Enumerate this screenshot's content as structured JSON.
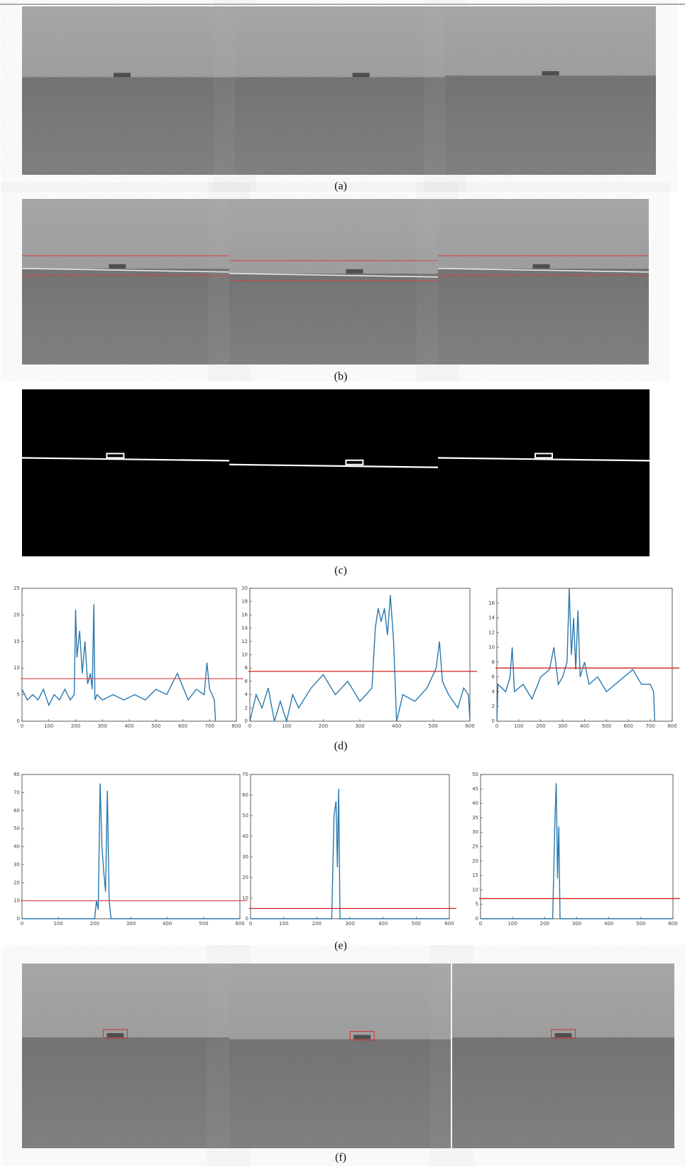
{
  "captions": [
    "(a)",
    "(b)",
    "(c)",
    "(d)",
    "(e)",
    "(f)"
  ],
  "chart_data": [
    {
      "type": "line",
      "color": "#2a78ad",
      "threshold": 8,
      "threshold_color": "#e05050",
      "xlim": [
        0,
        800
      ],
      "ylim": [
        0,
        25
      ],
      "xticks": [
        0,
        100,
        200,
        300,
        400,
        500,
        600,
        700,
        800
      ],
      "yticks": [
        0,
        5,
        10,
        15,
        20,
        25
      ],
      "x": [
        0,
        20,
        40,
        60,
        80,
        100,
        120,
        140,
        160,
        180,
        195,
        200,
        205,
        215,
        225,
        235,
        245,
        255,
        262,
        268,
        272,
        280,
        300,
        340,
        380,
        420,
        460,
        500,
        540,
        580,
        620,
        650,
        680,
        690,
        700,
        710,
        718,
        722
      ],
      "values": [
        6,
        4,
        5,
        4,
        6,
        3,
        5,
        4,
        6,
        4,
        5,
        21,
        12,
        17,
        9,
        15,
        7,
        9,
        6,
        22,
        4,
        5,
        4,
        5,
        4,
        5,
        4,
        6,
        5,
        9,
        4,
        6,
        5,
        11,
        6,
        5,
        4,
        0
      ]
    },
    {
      "type": "line",
      "color": "#2a78ad",
      "threshold": 7.5,
      "threshold_color": "#d02020",
      "xlim": [
        0,
        600
      ],
      "ylim": [
        0,
        20
      ],
      "xticks": [
        0,
        100,
        200,
        300,
        400,
        500,
        600
      ],
      "yticks": [
        0,
        2,
        4,
        6,
        8,
        10,
        12,
        14,
        16,
        18,
        20
      ],
      "x": [
        0,
        17,
        33,
        50,
        67,
        83,
        100,
        117,
        133,
        167,
        200,
        233,
        267,
        300,
        333,
        342,
        350,
        358,
        367,
        375,
        383,
        392,
        400,
        417,
        450,
        483,
        508,
        517,
        525,
        542,
        567,
        583,
        596,
        600
      ],
      "values": [
        0,
        4,
        2,
        5,
        0,
        3,
        0,
        4,
        2,
        5,
        7,
        4,
        6,
        3,
        5,
        14,
        17,
        15,
        17,
        13,
        19,
        12,
        0,
        4,
        3,
        5,
        8,
        12,
        6,
        4,
        2,
        5,
        4,
        0
      ]
    },
    {
      "type": "line",
      "color": "#2a78ad",
      "threshold": 7.2,
      "threshold_color": "#d02020",
      "xlim": [
        0,
        800
      ],
      "ylim": [
        0,
        18
      ],
      "xticks": [
        0,
        100,
        200,
        300,
        400,
        500,
        600,
        700,
        800
      ],
      "yticks": [
        0,
        2,
        4,
        6,
        8,
        10,
        12,
        14,
        16
      ],
      "x": [
        0,
        5,
        40,
        60,
        70,
        80,
        120,
        160,
        200,
        240,
        260,
        280,
        300,
        320,
        330,
        340,
        350,
        360,
        370,
        380,
        400,
        420,
        460,
        500,
        540,
        580,
        620,
        660,
        700,
        715,
        720
      ],
      "values": [
        0,
        5,
        4,
        6,
        10,
        4,
        5,
        3,
        6,
        7,
        10,
        5,
        6,
        8,
        18,
        9,
        14,
        7,
        15,
        6,
        8,
        5,
        6,
        4,
        5,
        6,
        7,
        5,
        5,
        4,
        0
      ]
    },
    {
      "type": "line",
      "color": "#2a78ad",
      "threshold": 10,
      "threshold_color": "#e05050",
      "xlim": [
        0,
        600
      ],
      "ylim": [
        0,
        80
      ],
      "xticks": [
        0,
        100,
        200,
        300,
        400,
        500,
        600
      ],
      "yticks": [
        0,
        10,
        20,
        30,
        40,
        50,
        60,
        70,
        80
      ],
      "x": [
        0,
        200,
        205,
        210,
        215,
        220,
        225,
        230,
        235,
        240,
        245,
        250,
        600
      ],
      "values": [
        0,
        0,
        10,
        5,
        75,
        40,
        26,
        15,
        71,
        10,
        0,
        0,
        0
      ]
    },
    {
      "type": "line",
      "color": "#2a78ad",
      "threshold": 5,
      "threshold_color": "#d02020",
      "xlim": [
        0,
        600
      ],
      "ylim": [
        0,
        70
      ],
      "xticks": [
        0,
        100,
        200,
        300,
        400,
        500,
        600
      ],
      "yticks": [
        0,
        10,
        20,
        30,
        40,
        50,
        60,
        70
      ],
      "x": [
        0,
        245,
        252,
        258,
        262,
        266,
        270,
        275,
        600
      ],
      "values": [
        0,
        0,
        50,
        57,
        25,
        63,
        0,
        0,
        0
      ]
    },
    {
      "type": "line",
      "color": "#2a78ad",
      "threshold": 7,
      "threshold_color": "#d02020",
      "xlim": [
        0,
        600
      ],
      "ylim": [
        0,
        50
      ],
      "xticks": [
        0,
        100,
        200,
        300,
        400,
        500,
        600
      ],
      "yticks": [
        0,
        5,
        10,
        15,
        20,
        25,
        30,
        35,
        40,
        45,
        50
      ],
      "x": [
        0,
        225,
        232,
        236,
        240,
        244,
        248,
        252,
        600
      ],
      "values": [
        0,
        0,
        35,
        47,
        14,
        32,
        0,
        0,
        0
      ]
    }
  ]
}
